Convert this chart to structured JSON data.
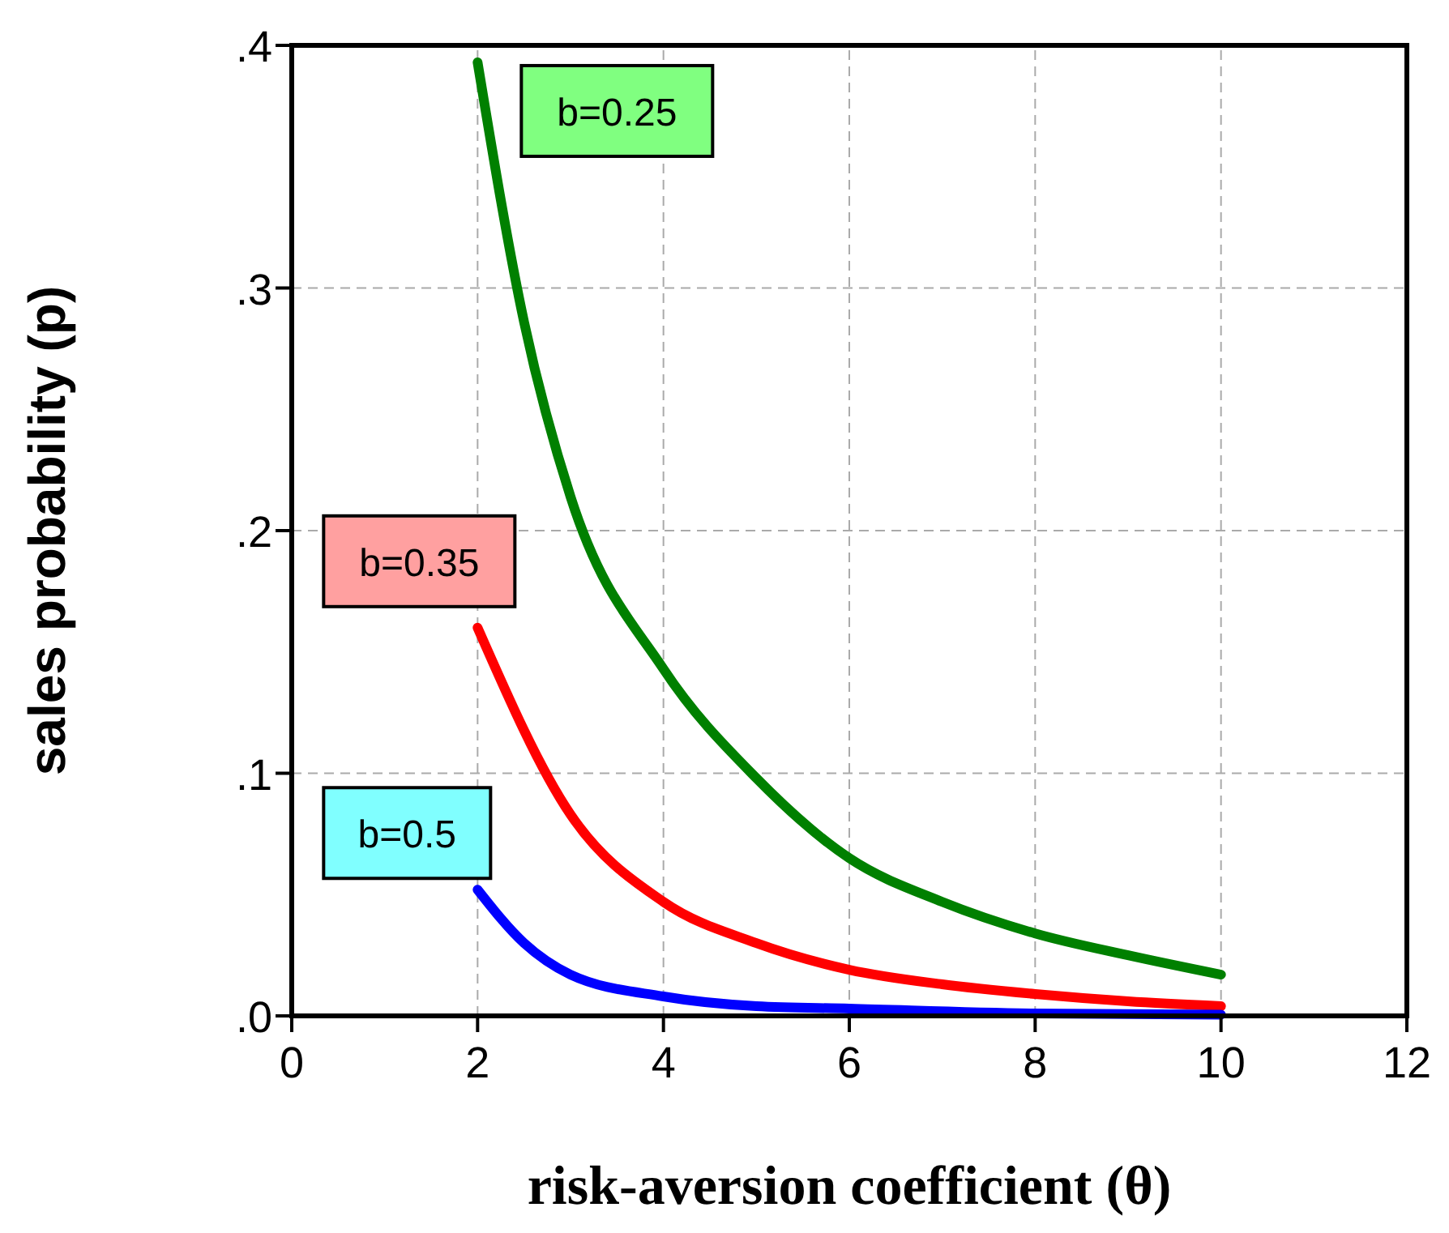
{
  "chart_data": {
    "type": "line",
    "xlabel": "risk-aversion coefficient (θ)",
    "ylabel": "sales probability (p)",
    "xlim": [
      0,
      12
    ],
    "xticks": [
      0,
      2,
      4,
      6,
      8,
      10,
      12
    ],
    "ylim": [
      0,
      0.4
    ],
    "yticks": [
      {
        "value": 0,
        "label": ".0"
      },
      {
        "value": 0.1,
        "label": ".1"
      },
      {
        "value": 0.2,
        "label": ".2"
      },
      {
        "value": 0.3,
        "label": ".3"
      },
      {
        "value": 0.4,
        "label": ".4"
      }
    ],
    "grid": true,
    "series": [
      {
        "name": "b=0.25",
        "color": "#008000",
        "x": [
          2,
          2.5,
          3,
          4,
          5,
          6,
          7,
          8,
          9,
          10
        ],
        "values": [
          0.393,
          0.286,
          0.214,
          0.143,
          0.098,
          0.065,
          0.047,
          0.034,
          0.025,
          0.017
        ]
      },
      {
        "name": "b=0.35",
        "color": "#ff0000",
        "x": [
          2,
          3,
          4,
          5,
          6,
          7,
          8,
          9,
          10
        ],
        "values": [
          0.16,
          0.083,
          0.047,
          0.03,
          0.019,
          0.013,
          0.009,
          0.006,
          0.004
        ]
      },
      {
        "name": "b=0.5",
        "color": "#0000ff",
        "x": [
          2,
          2.5,
          3,
          4,
          5,
          6,
          8,
          10
        ],
        "values": [
          0.052,
          0.03,
          0.017,
          0.008,
          0.004,
          0.003,
          0.001,
          0.0005
        ]
      }
    ]
  }
}
